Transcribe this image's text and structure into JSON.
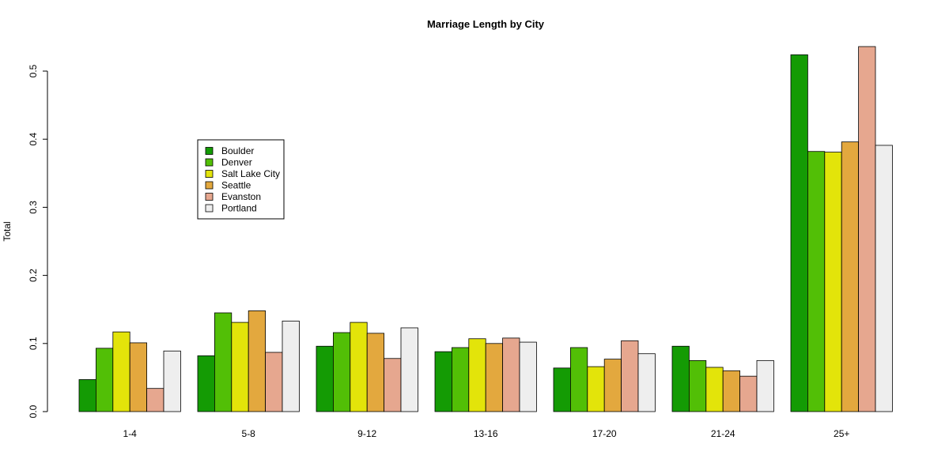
{
  "chart_data": {
    "type": "bar",
    "title": "Marriage Length by City",
    "xlabel": "",
    "ylabel": "Total",
    "ylim": [
      0,
      0.55
    ],
    "yticks": [
      0.0,
      0.1,
      0.2,
      0.3,
      0.4,
      0.5
    ],
    "ytick_labels": [
      "0.0",
      "0.1",
      "0.2",
      "0.3",
      "0.4",
      "0.5"
    ],
    "grid": false,
    "legend_position": "upper-left",
    "categories": [
      "1-4",
      "5-8",
      "9-12",
      "13-16",
      "17-20",
      "21-24",
      "25+"
    ],
    "series": [
      {
        "name": "Boulder",
        "color": "#149B04",
        "values": [
          0.047,
          0.082,
          0.096,
          0.088,
          0.064,
          0.096,
          0.524
        ]
      },
      {
        "name": "Denver",
        "color": "#52BF06",
        "values": [
          0.093,
          0.145,
          0.116,
          0.094,
          0.094,
          0.075,
          0.382
        ]
      },
      {
        "name": "Salt Lake City",
        "color": "#E3E40A",
        "values": [
          0.117,
          0.131,
          0.131,
          0.107,
          0.066,
          0.065,
          0.381
        ]
      },
      {
        "name": "Seattle",
        "color": "#E3A83E",
        "values": [
          0.101,
          0.148,
          0.115,
          0.1,
          0.077,
          0.06,
          0.396
        ]
      },
      {
        "name": "Evanston",
        "color": "#E6A78F",
        "values": [
          0.034,
          0.087,
          0.078,
          0.108,
          0.104,
          0.052,
          0.536
        ]
      },
      {
        "name": "Portland",
        "color": "#EEEEEE",
        "values": [
          0.089,
          0.133,
          0.123,
          0.102,
          0.085,
          0.075,
          0.391
        ]
      }
    ]
  }
}
